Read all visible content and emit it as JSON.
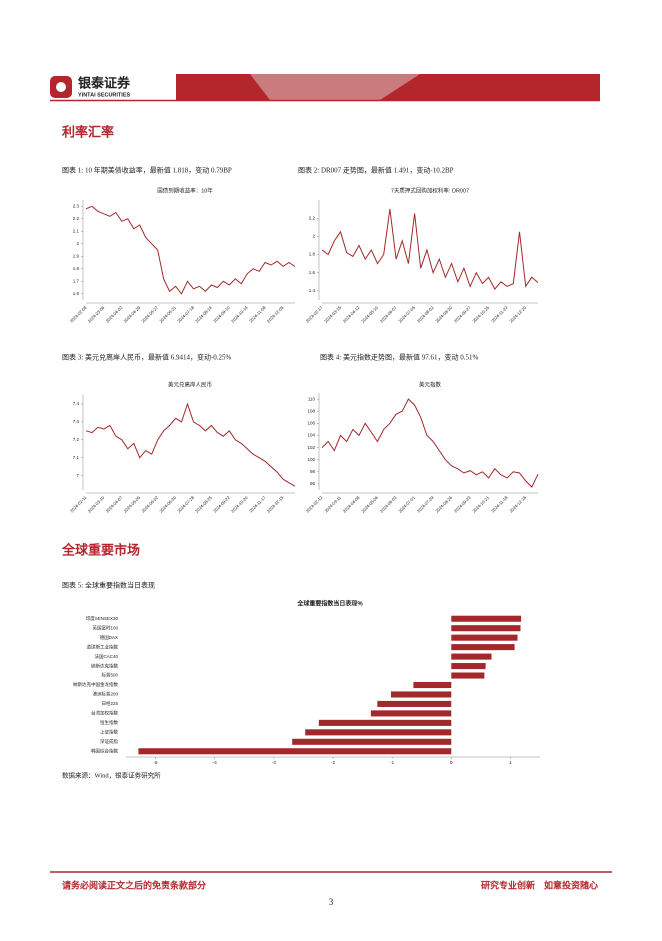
{
  "header": {
    "logo_name": "银泰证券",
    "logo_en": "YINTAI SECURITIES"
  },
  "sections": [
    "利率汇率",
    "全球重要市场"
  ],
  "source": "数据来源：Wind，银泰证券研究所",
  "footer": {
    "left": "请务必阅读正文之后的免责条款部分",
    "right": "研究专业创新　如意投资随心",
    "page": "3"
  },
  "chart_data": [
    {
      "type": "line",
      "caption": "图表 1: 10 年期美债收益率，最新值 1.818，变动 0.79BP",
      "title": "国债到期收益率：10年",
      "color": "#a3282b",
      "categories": [
        "2024-02-08",
        null,
        null,
        "2024-03-06",
        null,
        null,
        "2024-04-02",
        null,
        null,
        "2024-04-29",
        null,
        null,
        "2024-05-27",
        null,
        null,
        "2024-06-21",
        null,
        null,
        "2024-07-18",
        null,
        null,
        "2024-08-14",
        null,
        null,
        "2024-09-10",
        null,
        null,
        "2024-10-14",
        null,
        null,
        "2024-11-08",
        null,
        null,
        "2024-12-05",
        null,
        null
      ],
      "values": [
        2.28,
        2.3,
        2.26,
        2.24,
        2.22,
        2.25,
        2.18,
        2.2,
        2.12,
        2.15,
        2.05,
        2.0,
        1.95,
        1.72,
        1.62,
        1.66,
        1.6,
        1.7,
        1.64,
        1.66,
        1.62,
        1.67,
        1.65,
        1.7,
        1.67,
        1.72,
        1.68,
        1.76,
        1.8,
        1.78,
        1.85,
        1.83,
        1.86,
        1.82,
        1.85,
        1.818
      ],
      "ylim": [
        1.55,
        2.35
      ],
      "yticks": [
        1.6,
        1.7,
        1.8,
        1.9,
        2,
        2.1,
        2.2,
        2.3
      ]
    },
    {
      "type": "line",
      "caption": "图表 2: DR007 走势图，最新值 1.491，变动-10.2BP",
      "title": "7天质押式回购加权利率: DR007",
      "color": "#a3282b",
      "categories": [
        "2024-02-17",
        null,
        null,
        "2024-03-15",
        null,
        null,
        "2024-04-12",
        null,
        null,
        "2024-05-10",
        null,
        null,
        "2024-06-07",
        null,
        null,
        "2024-07-05",
        null,
        null,
        "2024-08-02",
        null,
        null,
        "2024-08-30",
        null,
        null,
        "2024-09-27",
        null,
        null,
        "2024-10-25",
        null,
        null,
        "2024-11-22",
        null,
        null,
        "2024-12-20",
        null,
        null
      ],
      "values": [
        1.85,
        1.8,
        1.95,
        2.05,
        1.82,
        1.78,
        1.9,
        1.75,
        1.85,
        1.7,
        1.8,
        2.3,
        1.75,
        1.95,
        1.7,
        2.25,
        1.65,
        1.85,
        1.6,
        1.75,
        1.55,
        1.7,
        1.5,
        1.65,
        1.45,
        1.6,
        1.48,
        1.55,
        1.42,
        1.5,
        1.45,
        1.48,
        2.05,
        1.45,
        1.55,
        1.491
      ],
      "ylim": [
        1.3,
        2.4
      ],
      "yticks": [
        1.4,
        1.6,
        1.8,
        2,
        2.2
      ]
    },
    {
      "type": "line",
      "caption": "图表 3: 美元兑离岸人民币，最新值 6.9414，变动-0.25%",
      "title": "美元兑离岸人民币",
      "color": "#a3282b",
      "categories": [
        "2024-02-11",
        null,
        null,
        "2024-03-10",
        null,
        null,
        "2024-04-07",
        null,
        null,
        "2024-05-05",
        null,
        null,
        "2024-06-02",
        null,
        null,
        "2024-06-30",
        null,
        null,
        "2024-07-28",
        null,
        null,
        "2024-08-25",
        null,
        null,
        "2024-09-22",
        null,
        null,
        "2024-10-20",
        null,
        null,
        "2024-11-17",
        null,
        null,
        "2024-12-15",
        null,
        null
      ],
      "values": [
        7.25,
        7.24,
        7.27,
        7.26,
        7.28,
        7.22,
        7.2,
        7.15,
        7.18,
        7.1,
        7.14,
        7.12,
        7.2,
        7.25,
        7.28,
        7.32,
        7.3,
        7.4,
        7.3,
        7.28,
        7.25,
        7.28,
        7.24,
        7.22,
        7.25,
        7.2,
        7.18,
        7.15,
        7.12,
        7.1,
        7.08,
        7.05,
        7.02,
        6.98,
        6.96,
        6.9414
      ],
      "ylim": [
        6.92,
        7.45
      ],
      "yticks": [
        7,
        7.1,
        7.2,
        7.3,
        7.4
      ]
    },
    {
      "type": "line",
      "caption": "图表 4: 美元指数走势图，最新值 97.61，变动 0.51%",
      "title": "美元指数",
      "color": "#a3282b",
      "categories": [
        "2024-02-12",
        null,
        null,
        "2024-03-11",
        null,
        null,
        "2024-04-08",
        null,
        null,
        "2024-05-06",
        null,
        null,
        "2024-06-03",
        null,
        null,
        "2024-07-01",
        null,
        null,
        "2024-07-29",
        null,
        null,
        "2024-08-26",
        null,
        null,
        "2024-09-23",
        null,
        null,
        "2024-10-21",
        null,
        null,
        "2024-11-18",
        null,
        null,
        "2024-12-16",
        null,
        null
      ],
      "values": [
        102,
        103,
        101.5,
        104,
        103,
        105,
        104,
        106,
        104.5,
        103,
        105,
        106,
        107.5,
        108,
        110,
        109,
        107,
        104,
        103,
        101.5,
        100,
        99,
        98.5,
        97.8,
        98.2,
        97.5,
        98,
        97,
        98.5,
        97.5,
        97,
        98,
        97.8,
        96.5,
        95.5,
        97.61
      ],
      "ylim": [
        95,
        111
      ],
      "yticks": [
        96,
        98,
        100,
        102,
        104,
        106,
        108,
        110
      ]
    },
    {
      "type": "hbar",
      "caption": "图表 5: 全球重要指数当日表现",
      "title": "全球重要指数当日表现%",
      "color": "#a3282b",
      "categories": [
        "印度SENSEX30",
        "英国富时100",
        "德国DAX",
        "道琼斯工业指数",
        "法国CAC40",
        "纳斯达克指数",
        "标普500",
        "纳斯达克中国金龙指数",
        "澳洲标普200",
        "日经225",
        "台湾加权指数",
        "恒生指数",
        "上证指数",
        "深证成指",
        "韩国综合指数"
      ],
      "values": [
        1.18,
        1.17,
        1.12,
        1.07,
        0.68,
        0.58,
        0.56,
        -0.64,
        -1.02,
        -1.25,
        -1.36,
        -2.24,
        -2.47,
        -2.69,
        -5.29
      ],
      "xlim": [
        -5.5,
        1.5
      ],
      "xticks": [
        -5,
        -4,
        -3,
        -2,
        -1,
        0,
        1
      ]
    }
  ]
}
